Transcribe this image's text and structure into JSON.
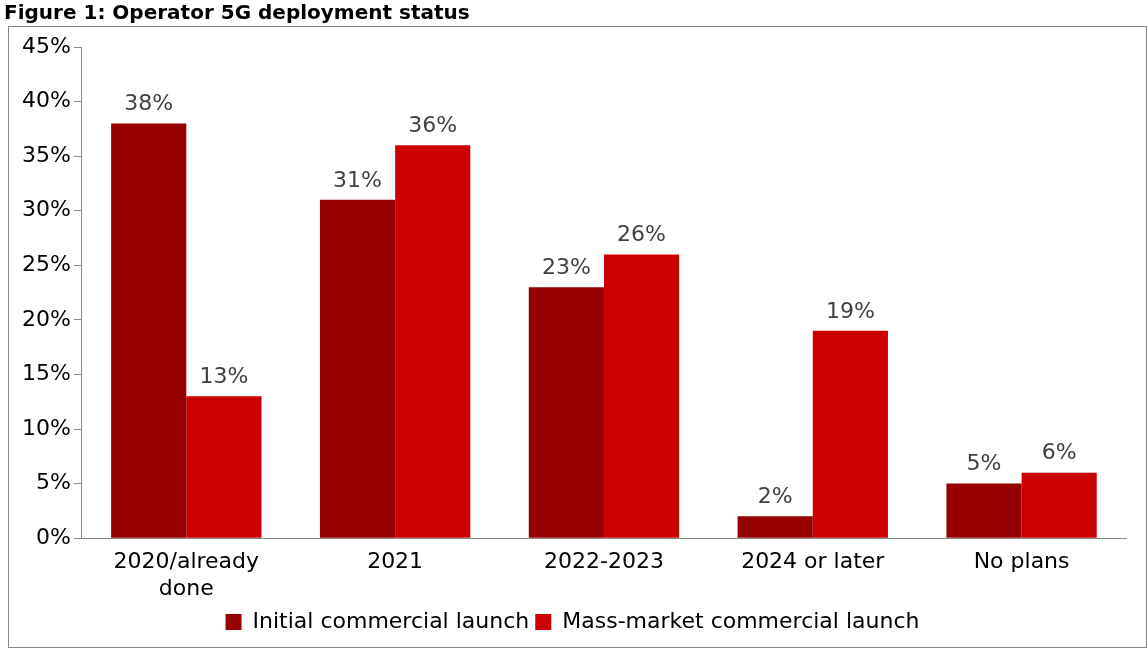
{
  "chart_data": {
    "type": "bar",
    "title": "Figure 1: Operator 5G deployment status",
    "categories": [
      "2020/already done",
      "2021",
      "2022-2023",
      "2024 or later",
      "No plans"
    ],
    "series": [
      {
        "name": "Initial commercial launch",
        "color": "#960000",
        "values": [
          38,
          31,
          23,
          2,
          5
        ],
        "value_labels": [
          "38%",
          "31%",
          "23%",
          "2%",
          "5%"
        ]
      },
      {
        "name": "Mass-market commercial launch",
        "color": "#cc0000",
        "values": [
          13,
          36,
          26,
          19,
          6
        ],
        "value_labels": [
          "13%",
          "36%",
          "26%",
          "19%",
          "6%"
        ]
      }
    ],
    "ylim": [
      0,
      45
    ],
    "yticks": [
      {
        "value": 0,
        "label": "0%"
      },
      {
        "value": 5,
        "label": "5%"
      },
      {
        "value": 10,
        "label": "10%"
      },
      {
        "value": 15,
        "label": "15%"
      },
      {
        "value": 20,
        "label": "20%"
      },
      {
        "value": 25,
        "label": "25%"
      },
      {
        "value": 30,
        "label": "30%"
      },
      {
        "value": 35,
        "label": "35%"
      },
      {
        "value": 40,
        "label": "40%"
      },
      {
        "value": 45,
        "label": "45%"
      }
    ],
    "grid": false,
    "legend": "bottom"
  }
}
